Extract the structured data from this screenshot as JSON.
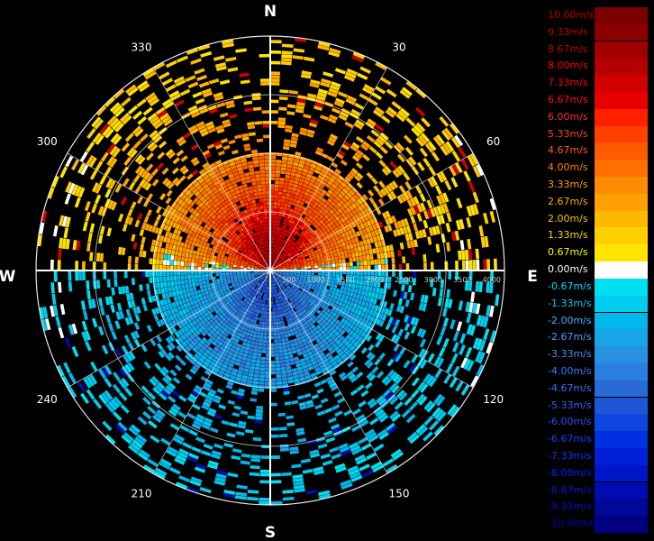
{
  "chart_data": {
    "type": "heatmap",
    "subtype": "polar-radial-velocity-ppi",
    "compass": {
      "north": "N",
      "east": "E",
      "south": "S",
      "west": "W"
    },
    "azimuth_ticks": [
      "30",
      "60",
      "120",
      "150",
      "210",
      "240",
      "300",
      "330"
    ],
    "azimuth_tick_values": [
      30,
      60,
      120,
      150,
      210,
      240,
      300,
      330
    ],
    "range_ticks": [
      "500",
      "1000",
      "1500",
      "2000",
      "2500",
      "3000",
      "3500",
      "4000"
    ],
    "range_tick_values": [
      500,
      1000,
      1500,
      2000,
      2500,
      3000,
      3500,
      4000
    ],
    "range_max": 4000,
    "grid": true,
    "legend_position": "right",
    "color_scale": {
      "unit": "m/s",
      "labels": [
        "10.00m/s",
        "9.33m/s",
        "8.67m/s",
        "8.00m/s",
        "7.33m/s",
        "6.67m/s",
        "6.00m/s",
        "5.33m/s",
        "4.67m/s",
        "4.00m/s",
        "3.33m/s",
        "2.67m/s",
        "2.00m/s",
        "1.33m/s",
        "0.67m/s",
        "0.00m/s",
        "-0.67m/s",
        "-1.33m/s",
        "-2.00m/s",
        "-2.67m/s",
        "-3.33m/s",
        "-4.00m/s",
        "-4.67m/s",
        "-5.33m/s",
        "-6.00m/s",
        "-6.67m/s",
        "-7.33m/s",
        "-8.00m/s",
        "-8.67m/s",
        "-9.33m/s",
        "-10.00m/s"
      ],
      "values": [
        10.0,
        9.33,
        8.67,
        8.0,
        7.33,
        6.67,
        6.0,
        5.33,
        4.67,
        4.0,
        3.33,
        2.67,
        2.0,
        1.33,
        0.67,
        0.0,
        -0.67,
        -1.33,
        -2.0,
        -2.67,
        -3.33,
        -4.0,
        -4.67,
        -5.33,
        -6.0,
        -6.67,
        -7.33,
        -8.0,
        -8.67,
        -9.33,
        -10.0
      ],
      "colors": [
        "#7a0000",
        "#8a0000",
        "#a00000",
        "#b40000",
        "#d00000",
        "#e60000",
        "#ff2000",
        "#ff4000",
        "#ff5a00",
        "#ff7000",
        "#ff8c00",
        "#ffa000",
        "#ffb800",
        "#ffd000",
        "#ffe600",
        "#ffffff",
        "#00e0f0",
        "#00ccee",
        "#00b8ea",
        "#18a4e8",
        "#2890e0",
        "#2a7ee0",
        "#2a6ad8",
        "#2056d6",
        "#1046e0",
        "#0030e0",
        "#0020d8",
        "#0014c8",
        "#000cb0",
        "#000898",
        "#000080"
      ],
      "text_colors": [
        "#c00000",
        "#c00000",
        "#c00000",
        "#ff0000",
        "#ff0000",
        "#ff1010",
        "#ff3030",
        "#ff4020",
        "#ff5a10",
        "#ff8000",
        "#ffa000",
        "#ffb000",
        "#ffc000",
        "#ffd800",
        "#ffff00",
        "#ffffff",
        "#00d8ff",
        "#00c8ff",
        "#40b0ff",
        "#4aa0ff",
        "#4090ff",
        "#3080ff",
        "#3070ff",
        "#2060ff",
        "#2050ff",
        "#1040ff",
        "#1030ff",
        "#0020ff",
        "#0018e0",
        "#0010d0",
        "#0008b0"
      ]
    },
    "velocity_field": {
      "description": "Doppler radial velocity PPI: north half inbound/outbound positive (warm), south half negative (cool)",
      "dense_radius": 2000,
      "rings": [
        {
          "range": 500,
          "north_mean": 8.0,
          "south_mean": -5.3
        },
        {
          "range": 1000,
          "north_mean": 6.0,
          "south_mean": -4.0
        },
        {
          "range": 1500,
          "north_mean": 4.67,
          "south_mean": -3.33
        },
        {
          "range": 2000,
          "north_mean": 3.33,
          "south_mean": -2.67
        },
        {
          "range": 2500,
          "north_mean": 2.67,
          "south_mean": -2.0
        },
        {
          "range": 3000,
          "north_mean": 2.0,
          "south_mean": -2.0
        },
        {
          "range": 3500,
          "north_mean": 1.33,
          "south_mean": -1.33
        },
        {
          "range": 4000,
          "north_mean": 1.33,
          "south_mean": -1.33
        }
      ]
    }
  }
}
